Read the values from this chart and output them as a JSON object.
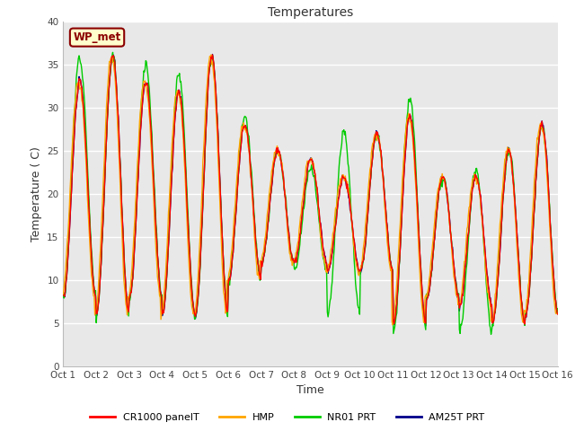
{
  "title": "Temperatures",
  "xlabel": "Time",
  "ylabel": "Temperature ( C)",
  "xlim": [
    0,
    15
  ],
  "ylim": [
    0,
    40
  ],
  "yticks": [
    0,
    5,
    10,
    15,
    20,
    25,
    30,
    35,
    40
  ],
  "xtick_labels": [
    "Oct 1",
    "Oct 2",
    "Oct 3",
    "Oct 4",
    "Oct 5",
    "Oct 6",
    "Oct 7",
    "Oct 8",
    "Oct 9",
    "Oct 10",
    "Oct 11",
    "Oct 12",
    "Oct 13",
    "Oct 14",
    "Oct 15",
    "Oct 16"
  ],
  "background_color": "#e8e8e8",
  "figure_background": "#ffffff",
  "annotation_text": "WP_met",
  "annotation_bg": "#ffffcc",
  "annotation_border": "#8b0000",
  "annotation_text_color": "#8b0000",
  "series_colors": [
    "#ff0000",
    "#ffa500",
    "#00cc00",
    "#00008b"
  ],
  "series_names": [
    "CR1000 panelT",
    "HMP",
    "NR01 PRT",
    "AM25T PRT"
  ],
  "linewidth": 1.0,
  "daily_peaks": [
    33,
    36,
    33,
    32,
    36,
    28,
    25,
    24,
    22,
    27,
    29,
    22,
    22,
    25,
    28
  ],
  "daily_mins": [
    8,
    6,
    8,
    6,
    6,
    10,
    12,
    12,
    11,
    11,
    5,
    8,
    7,
    5,
    6
  ],
  "nro1_peaks": [
    36,
    36,
    35,
    34,
    36,
    29,
    25,
    23,
    27,
    27,
    31,
    22,
    23,
    25,
    28
  ],
  "nro1_mins": [
    8,
    6,
    8,
    6,
    6,
    10,
    12,
    11,
    6,
    11,
    4,
    8,
    4,
    5,
    6
  ],
  "hmp_lag": 2,
  "ppd": 48,
  "n_days": 15
}
